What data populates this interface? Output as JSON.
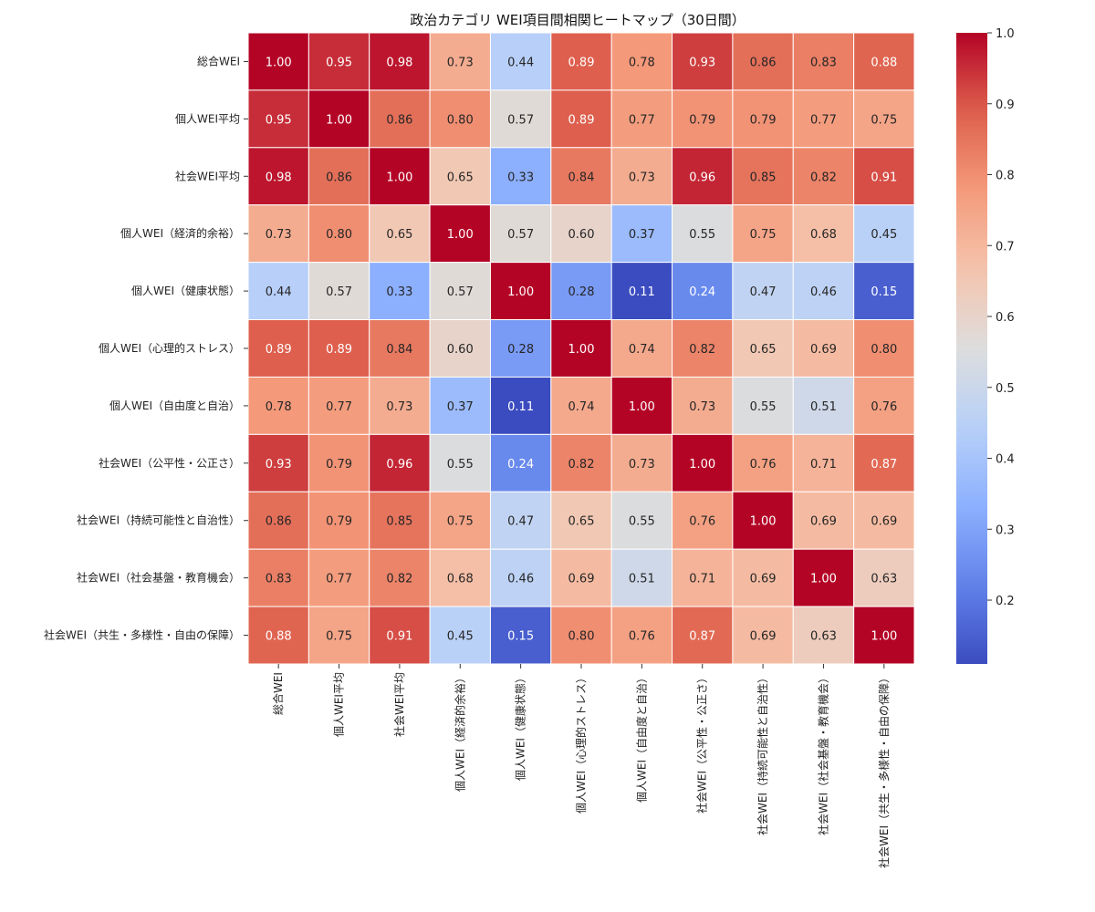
{
  "chart_data": {
    "type": "heatmap",
    "title": "政治カテゴリ WEI項目間相関ヒートマップ（30日間）",
    "labels": [
      "総合WEI",
      "個人WEI平均",
      "社会WEI平均",
      "個人WEI（経済的余裕）",
      "個人WEI（健康状態）",
      "個人WEI（心理的ストレス）",
      "個人WEI（自由度と自治）",
      "社会WEI（公平性・公正さ）",
      "社会WEI（持続可能性と自治性）",
      "社会WEI（社会基盤・教育機会）",
      "社会WEI（共生・多様性・自由の保障）"
    ],
    "matrix": [
      [
        1.0,
        0.95,
        0.98,
        0.73,
        0.44,
        0.89,
        0.78,
        0.93,
        0.86,
        0.83,
        0.88
      ],
      [
        0.95,
        1.0,
        0.86,
        0.8,
        0.57,
        0.89,
        0.77,
        0.79,
        0.79,
        0.77,
        0.75
      ],
      [
        0.98,
        0.86,
        1.0,
        0.65,
        0.33,
        0.84,
        0.73,
        0.96,
        0.85,
        0.82,
        0.91
      ],
      [
        0.73,
        0.8,
        0.65,
        1.0,
        0.57,
        0.6,
        0.37,
        0.55,
        0.75,
        0.68,
        0.45
      ],
      [
        0.44,
        0.57,
        0.33,
        0.57,
        1.0,
        0.28,
        0.11,
        0.24,
        0.47,
        0.46,
        0.15
      ],
      [
        0.89,
        0.89,
        0.84,
        0.6,
        0.28,
        1.0,
        0.74,
        0.82,
        0.65,
        0.69,
        0.8
      ],
      [
        0.78,
        0.77,
        0.73,
        0.37,
        0.11,
        0.74,
        1.0,
        0.73,
        0.55,
        0.51,
        0.76
      ],
      [
        0.93,
        0.79,
        0.96,
        0.55,
        0.24,
        0.82,
        0.73,
        1.0,
        0.76,
        0.71,
        0.87
      ],
      [
        0.86,
        0.79,
        0.85,
        0.75,
        0.47,
        0.65,
        0.55,
        0.76,
        1.0,
        0.69,
        0.69
      ],
      [
        0.83,
        0.77,
        0.82,
        0.68,
        0.46,
        0.69,
        0.51,
        0.71,
        0.69,
        1.0,
        0.63
      ],
      [
        0.88,
        0.75,
        0.91,
        0.45,
        0.15,
        0.8,
        0.76,
        0.87,
        0.69,
        0.63,
        1.0
      ]
    ],
    "value_format": "2 decimals",
    "colormap": "coolwarm",
    "vmin": 0.11,
    "vmax": 1.0,
    "colorbar_ticks": [
      "0.2",
      "0.3",
      "0.4",
      "0.5",
      "0.6",
      "0.7",
      "0.8",
      "0.9",
      "1.0"
    ],
    "colorbar_tick_values": [
      0.2,
      0.3,
      0.4,
      0.5,
      0.6,
      0.7,
      0.8,
      0.9,
      1.0
    ]
  }
}
